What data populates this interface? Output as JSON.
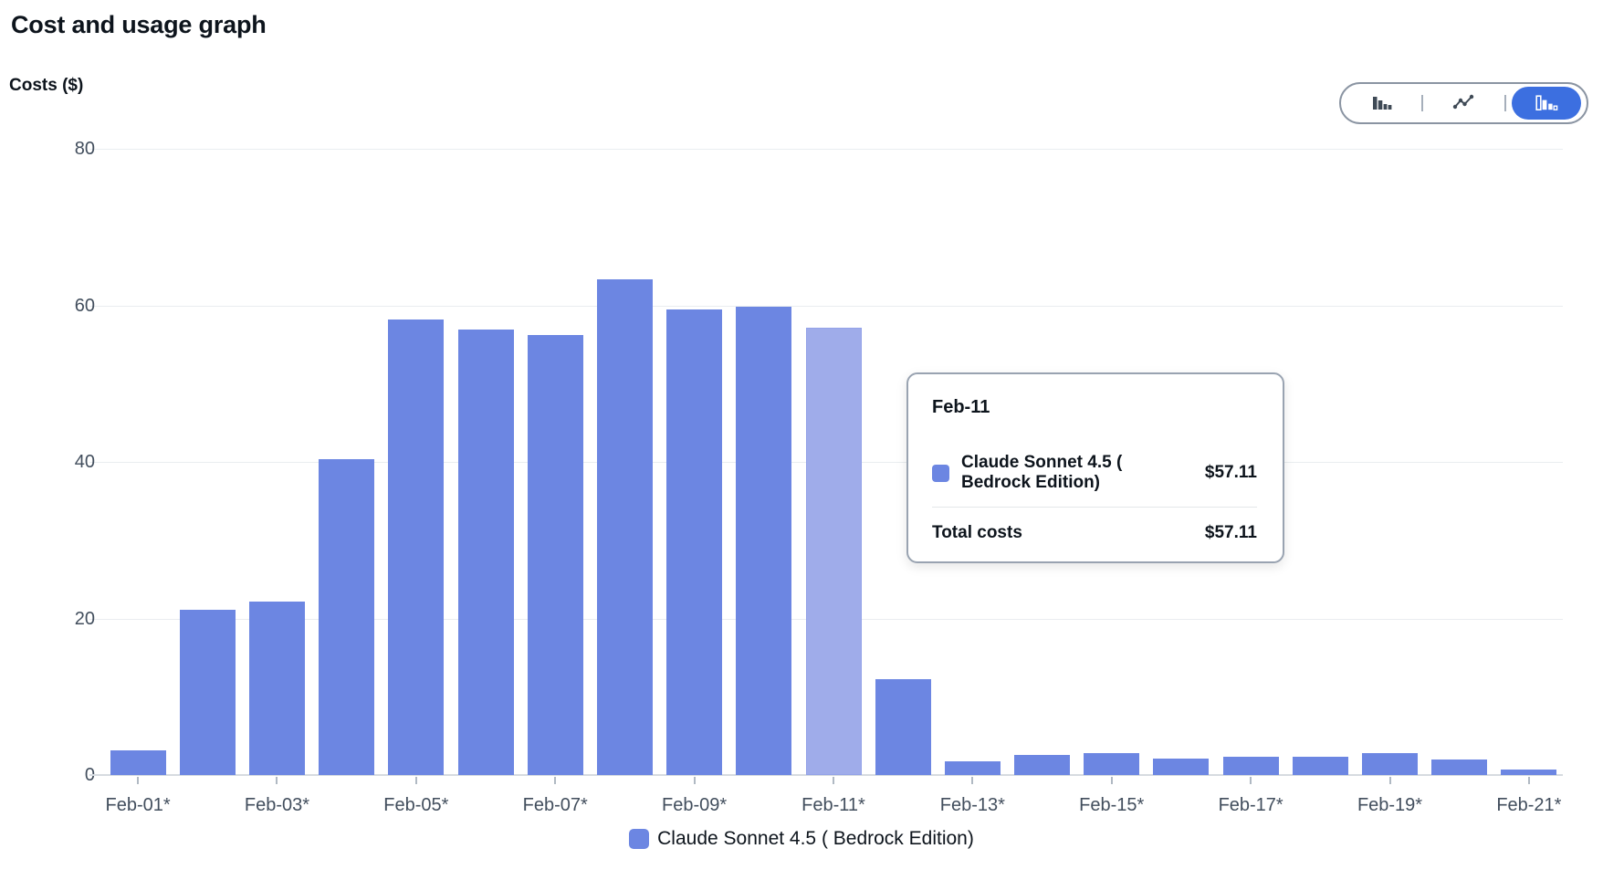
{
  "page_title": "Cost and usage graph",
  "y_axis_title": "Costs ($)",
  "chart_toolbar": {
    "options": [
      {
        "name": "bar-chart",
        "selected": false
      },
      {
        "name": "line-chart",
        "selected": false
      },
      {
        "name": "stacked-bar-chart",
        "selected": true
      }
    ],
    "selected_background": "#3C6FE0"
  },
  "chart_data": {
    "type": "bar",
    "title": "Cost and usage graph",
    "xlabel": "",
    "ylabel": "Costs ($)",
    "ylim": [
      0,
      80
    ],
    "yticks": [
      0,
      20,
      40,
      60,
      80
    ],
    "grid": true,
    "legend_position": "bottom",
    "categories": [
      "Feb-01",
      "Feb-02",
      "Feb-03",
      "Feb-04",
      "Feb-05",
      "Feb-06",
      "Feb-07",
      "Feb-08",
      "Feb-09",
      "Feb-10",
      "Feb-11",
      "Feb-12",
      "Feb-13",
      "Feb-14",
      "Feb-15",
      "Feb-16",
      "Feb-17",
      "Feb-18",
      "Feb-19",
      "Feb-20",
      "Feb-21"
    ],
    "x_tick_labels": [
      {
        "index": 0,
        "label": "Feb-01*"
      },
      {
        "index": 2,
        "label": "Feb-03*"
      },
      {
        "index": 4,
        "label": "Feb-05*"
      },
      {
        "index": 6,
        "label": "Feb-07*"
      },
      {
        "index": 8,
        "label": "Feb-09*"
      },
      {
        "index": 10,
        "label": "Feb-11*"
      },
      {
        "index": 12,
        "label": "Feb-13*"
      },
      {
        "index": 14,
        "label": "Feb-15*"
      },
      {
        "index": 16,
        "label": "Feb-17*"
      },
      {
        "index": 18,
        "label": "Feb-19*"
      },
      {
        "index": 20,
        "label": "Feb-21*"
      }
    ],
    "series": [
      {
        "name": "Claude Sonnet 4.5 ( Bedrock Edition)",
        "color": "#6C86E2",
        "values": [
          3.1,
          21.1,
          22.2,
          40.4,
          58.2,
          56.9,
          56.2,
          63.3,
          59.5,
          59.8,
          57.11,
          12.3,
          1.7,
          2.6,
          2.8,
          2.1,
          2.3,
          2.3,
          2.8,
          2.0,
          0.7
        ]
      }
    ],
    "highlighted_category": "Feb-11",
    "highlight_color": "#9FACEA"
  },
  "tooltip": {
    "title": "Feb-11",
    "rows": [
      {
        "label": "Claude Sonnet 4.5 ( Bedrock Edition)",
        "value": "$57.11",
        "swatch_color": "#6C86E2"
      }
    ],
    "total_label": "Total costs",
    "total_value": "$57.11"
  },
  "legend": {
    "items": [
      {
        "label": "Claude Sonnet 4.5 ( Bedrock Edition)",
        "color": "#6C86E2"
      }
    ]
  }
}
